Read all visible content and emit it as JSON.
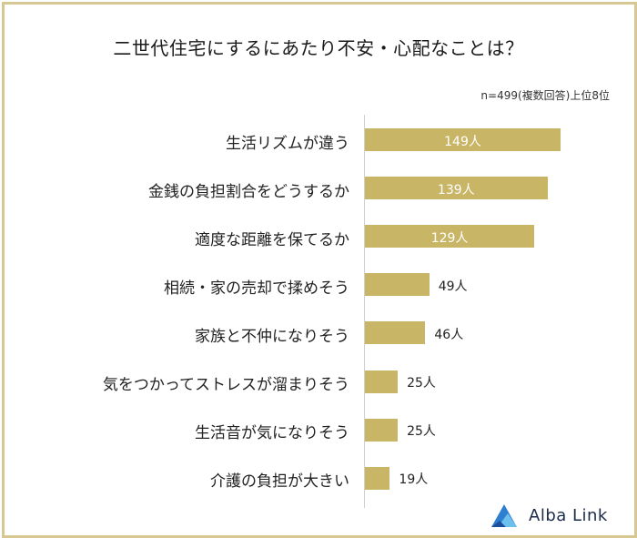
{
  "title": "二世代住宅にするにあたり不安・心配なことは？",
  "note": "n=499(複数回答)上位8位",
  "brand": {
    "name": "Alba Link",
    "logo_color": "#2f7fd1"
  },
  "colors": {
    "bar": "#c9b566",
    "frame": "#d7c792"
  },
  "chart_data": {
    "type": "bar",
    "orientation": "horizontal",
    "unit": "人",
    "categories": [
      "生活リズムが違う",
      "金銭の負担割合をどうするか",
      "適度な距離を保てるか",
      "相続・家の売却で揉めそう",
      "家族と不仲になりそう",
      "気をつかってストレスが溜まりそう",
      "生活音が気になりそう",
      "介護の負担が大きい"
    ],
    "values": [
      149,
      139,
      129,
      49,
      46,
      25,
      25,
      19
    ],
    "value_labels": [
      "149人",
      "139人",
      "129人",
      "49人",
      "46人",
      "25人",
      "25人",
      "19人"
    ]
  }
}
